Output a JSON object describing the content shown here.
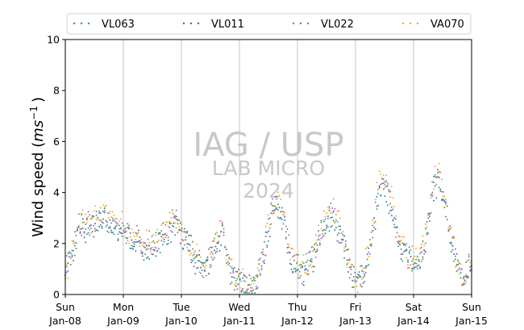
{
  "chart_data": {
    "type": "scatter",
    "ylabel_main": "Wind speed (",
    "ylabel_unit": "ms",
    "ylabel_exp": "−1",
    "ylabel_close": ")",
    "xlabel": "",
    "ylim": [
      0,
      10
    ],
    "yticks": [
      0,
      2,
      4,
      6,
      8,
      10
    ],
    "xlim": [
      0,
      7
    ],
    "xticks": [
      {
        "day": 0,
        "label1": "Sun",
        "label2": "Jan-08"
      },
      {
        "day": 1,
        "label1": "Mon",
        "label2": "Jan-09"
      },
      {
        "day": 2,
        "label1": "Tue",
        "label2": "Jan-10"
      },
      {
        "day": 3,
        "label1": "Wed",
        "label2": "Jan-11"
      },
      {
        "day": 4,
        "label1": "Thu",
        "label2": "Jan-12"
      },
      {
        "day": 5,
        "label1": "Fri",
        "label2": "Jan-13"
      },
      {
        "day": 6,
        "label1": "Sat",
        "label2": "Jan-14"
      },
      {
        "day": 7,
        "label1": "Sun",
        "label2": "Jan-15"
      }
    ],
    "grid_x": true,
    "legend_position": "top",
    "watermark": {
      "line1": "IAG / USP",
      "line2": "LAB MICRO",
      "line3": "2024"
    },
    "series": [
      {
        "name": "VL063",
        "color": "#2ca05a",
        "scale": 1.0,
        "phase": 0.0
      },
      {
        "name": "VL011",
        "color": "#3b6ea5",
        "scale": 0.97,
        "phase": 1.3
      },
      {
        "name": "VL022",
        "color": "#9467bd",
        "scale": 1.03,
        "phase": 2.1
      },
      {
        "name": "VA070",
        "color": "#f5a623",
        "scale": 1.1,
        "phase": 3.4
      }
    ],
    "profile": [
      [
        0.0,
        1.0
      ],
      [
        0.08,
        1.2
      ],
      [
        0.15,
        1.9
      ],
      [
        0.25,
        2.8
      ],
      [
        0.4,
        2.6
      ],
      [
        0.55,
        2.9
      ],
      [
        0.7,
        3.0
      ],
      [
        0.9,
        2.5
      ],
      [
        1.05,
        2.4
      ],
      [
        1.2,
        2.2
      ],
      [
        1.35,
        1.8
      ],
      [
        1.55,
        2.0
      ],
      [
        1.7,
        2.3
      ],
      [
        1.85,
        2.7
      ],
      [
        1.95,
        2.8
      ],
      [
        2.05,
        2.2
      ],
      [
        2.15,
        1.9
      ],
      [
        2.25,
        1.3
      ],
      [
        2.4,
        1.1
      ],
      [
        2.5,
        1.3
      ],
      [
        2.6,
        2.0
      ],
      [
        2.7,
        2.4
      ],
      [
        2.78,
        1.4
      ],
      [
        2.85,
        0.8
      ],
      [
        2.95,
        0.6
      ],
      [
        3.1,
        0.4
      ],
      [
        3.2,
        0.3
      ],
      [
        3.3,
        0.5
      ],
      [
        3.4,
        1.5
      ],
      [
        3.5,
        2.5
      ],
      [
        3.55,
        3.0
      ],
      [
        3.62,
        3.5
      ],
      [
        3.72,
        3.3
      ],
      [
        3.8,
        2.4
      ],
      [
        3.88,
        1.5
      ],
      [
        3.95,
        1.2
      ],
      [
        4.05,
        0.9
      ],
      [
        4.15,
        1.0
      ],
      [
        4.25,
        1.3
      ],
      [
        4.35,
        2.0
      ],
      [
        4.45,
        2.7
      ],
      [
        4.55,
        3.0
      ],
      [
        4.62,
        3.1
      ],
      [
        4.72,
        2.5
      ],
      [
        4.82,
        1.8
      ],
      [
        4.9,
        1.0
      ],
      [
        5.0,
        0.6
      ],
      [
        5.08,
        0.5
      ],
      [
        5.15,
        0.9
      ],
      [
        5.22,
        1.5
      ],
      [
        5.3,
        2.5
      ],
      [
        5.38,
        3.9
      ],
      [
        5.45,
        4.4
      ],
      [
        5.52,
        4.1
      ],
      [
        5.6,
        3.7
      ],
      [
        5.68,
        2.7
      ],
      [
        5.75,
        2.0
      ],
      [
        5.85,
        1.6
      ],
      [
        5.95,
        1.3
      ],
      [
        6.05,
        1.2
      ],
      [
        6.12,
        1.4
      ],
      [
        6.2,
        2.2
      ],
      [
        6.28,
        3.3
      ],
      [
        6.35,
        4.2
      ],
      [
        6.42,
        4.7
      ],
      [
        6.5,
        4.0
      ],
      [
        6.58,
        3.0
      ],
      [
        6.68,
        1.8
      ],
      [
        6.78,
        0.8
      ],
      [
        6.88,
        0.5
      ],
      [
        7.0,
        1.5
      ]
    ]
  }
}
